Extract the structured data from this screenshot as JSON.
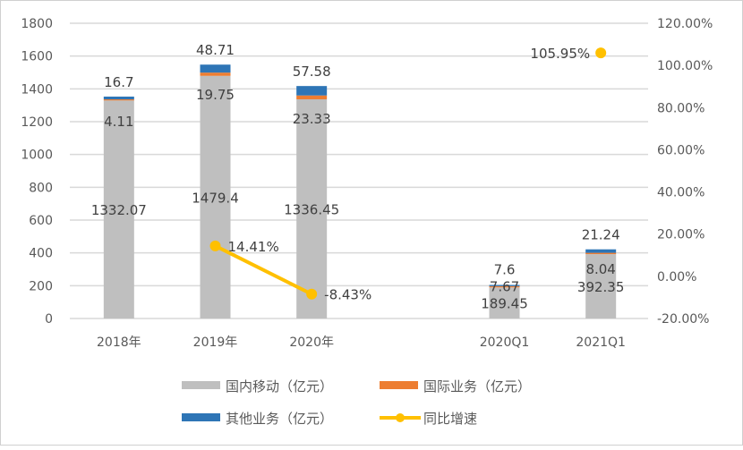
{
  "chart_data": {
    "type": "bar",
    "stacked": true,
    "categories": [
      "2018年",
      "2019年",
      "2020年",
      "",
      "2020Q1",
      "2021Q1"
    ],
    "series": [
      {
        "name": "国内移动（亿元）",
        "kind": "bar",
        "color": "#bfbfbf",
        "values": [
          1332.07,
          1479.4,
          1336.45,
          null,
          189.45,
          392.35
        ],
        "labels": [
          "1332.07",
          "1479.4",
          "1336.45",
          "",
          "189.45",
          "392.35"
        ]
      },
      {
        "name": "国际业务（亿元）",
        "kind": "bar",
        "color": "#ed7d31",
        "values": [
          4.11,
          19.75,
          23.33,
          null,
          7.67,
          8.04
        ],
        "labels": [
          "4.11",
          "19.75",
          "23.33",
          "",
          "7.67",
          "8.04"
        ]
      },
      {
        "name": "其他业务（亿元）",
        "kind": "bar",
        "color": "#2e75b6",
        "values": [
          16.7,
          48.71,
          57.58,
          null,
          7.6,
          21.24
        ],
        "labels": [
          "16.7",
          "48.71",
          "57.58",
          "",
          "7.6",
          "21.24"
        ]
      },
      {
        "name": "同比增速",
        "kind": "line",
        "axis": "right",
        "color": "#ffc000",
        "values": [
          null,
          14.41,
          -8.43,
          null,
          null,
          105.95
        ],
        "labels": [
          "",
          "14.41%",
          "-8.43%",
          "",
          "",
          "105.95%"
        ]
      }
    ],
    "y_left": {
      "min": 0,
      "max": 1800,
      "step": 200,
      "ticks": [
        "0",
        "200",
        "400",
        "600",
        "800",
        "1000",
        "1200",
        "1400",
        "1600",
        "1800"
      ]
    },
    "y_right": {
      "min": -20,
      "max": 120,
      "step": 20,
      "ticks": [
        "-20.00%",
        "0.00%",
        "20.00%",
        "40.00%",
        "60.00%",
        "80.00%",
        "100.00%",
        "120.00%"
      ]
    },
    "grid": true,
    "legend_position": "bottom"
  }
}
